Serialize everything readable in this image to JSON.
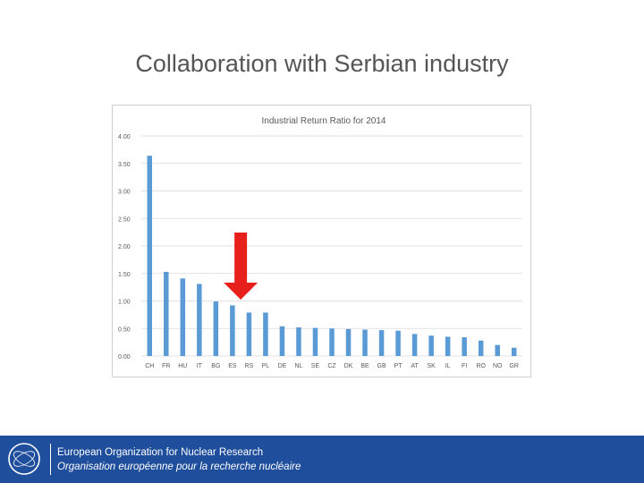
{
  "slide": {
    "title": "Collaboration with Serbian industry"
  },
  "footer": {
    "org_en": "European Organization for Nuclear Research",
    "org_fr": "Organisation européenne pour la recherche nucléaire",
    "logo_text": "CERN"
  },
  "colors": {
    "bar": "#5b9bd5",
    "arrow": "#e8201c",
    "footer_bg": "#1f4e9c",
    "grid": "#d9d9d9"
  },
  "chart_data": {
    "type": "bar",
    "title": "Industrial Return Ratio for 2014",
    "xlabel": "",
    "ylabel": "",
    "ylim": [
      0,
      4
    ],
    "ytick_labels": [
      "0.00",
      "0.50",
      "1.00",
      "1.50",
      "2.00",
      "2.50",
      "3.00",
      "3.50",
      "4.00"
    ],
    "grid": true,
    "highlight_category": "RS",
    "categories": [
      "CH",
      "FR",
      "HU",
      "IT",
      "BG",
      "ES",
      "RS",
      "PL",
      "DE",
      "NL",
      "SE",
      "CZ",
      "DK",
      "BE",
      "GB",
      "PT",
      "AT",
      "SK",
      "IL",
      "FI",
      "RO",
      "NO",
      "GR"
    ],
    "values": [
      3.64,
      1.53,
      1.41,
      1.31,
      0.99,
      0.92,
      0.79,
      0.79,
      0.54,
      0.52,
      0.51,
      0.5,
      0.49,
      0.48,
      0.47,
      0.46,
      0.4,
      0.37,
      0.35,
      0.34,
      0.28,
      0.2,
      0.15
    ]
  }
}
